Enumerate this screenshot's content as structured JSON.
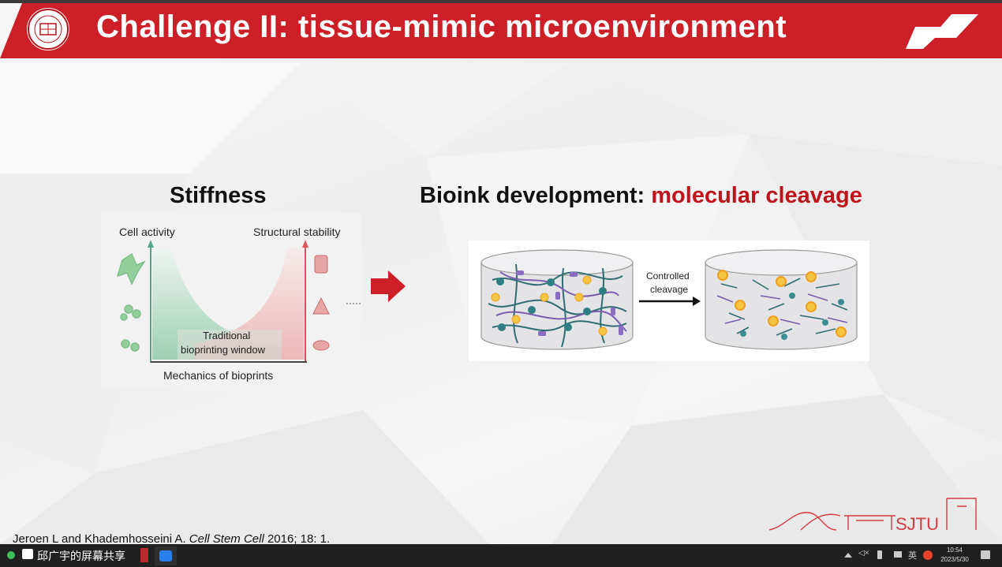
{
  "slide": {
    "title": "Challenge II: tissue-mimic microenvironment",
    "left_heading": "Stiffness",
    "right_heading_prefix": "Bioink development: ",
    "right_heading_highlight": "molecular cleavage",
    "accent_color": "#cc1f27",
    "highlight_color": "#c0141c"
  },
  "stiffness_figure": {
    "y_left_label": "Cell activity",
    "y_right_label": "Structural stability",
    "window_label_line1": "Traditional",
    "window_label_line2": "bioprinting window",
    "x_label": "Mechanics of bioprints"
  },
  "cleavage_figure": {
    "arrow_label_line1": "Controlled",
    "arrow_label_line2": "cleavage"
  },
  "citation": {
    "authors": "Jeroen L and Khademhosseini A. ",
    "journal": "Cell Stem Cell",
    "details": " 2016; 18: 1."
  },
  "footer_logo": {
    "text": "SJTU"
  },
  "taskbar": {
    "share_label": "邱广宇的屏幕共享",
    "time": "10:54",
    "date": "2023/5/30",
    "tray_lang": "英"
  }
}
